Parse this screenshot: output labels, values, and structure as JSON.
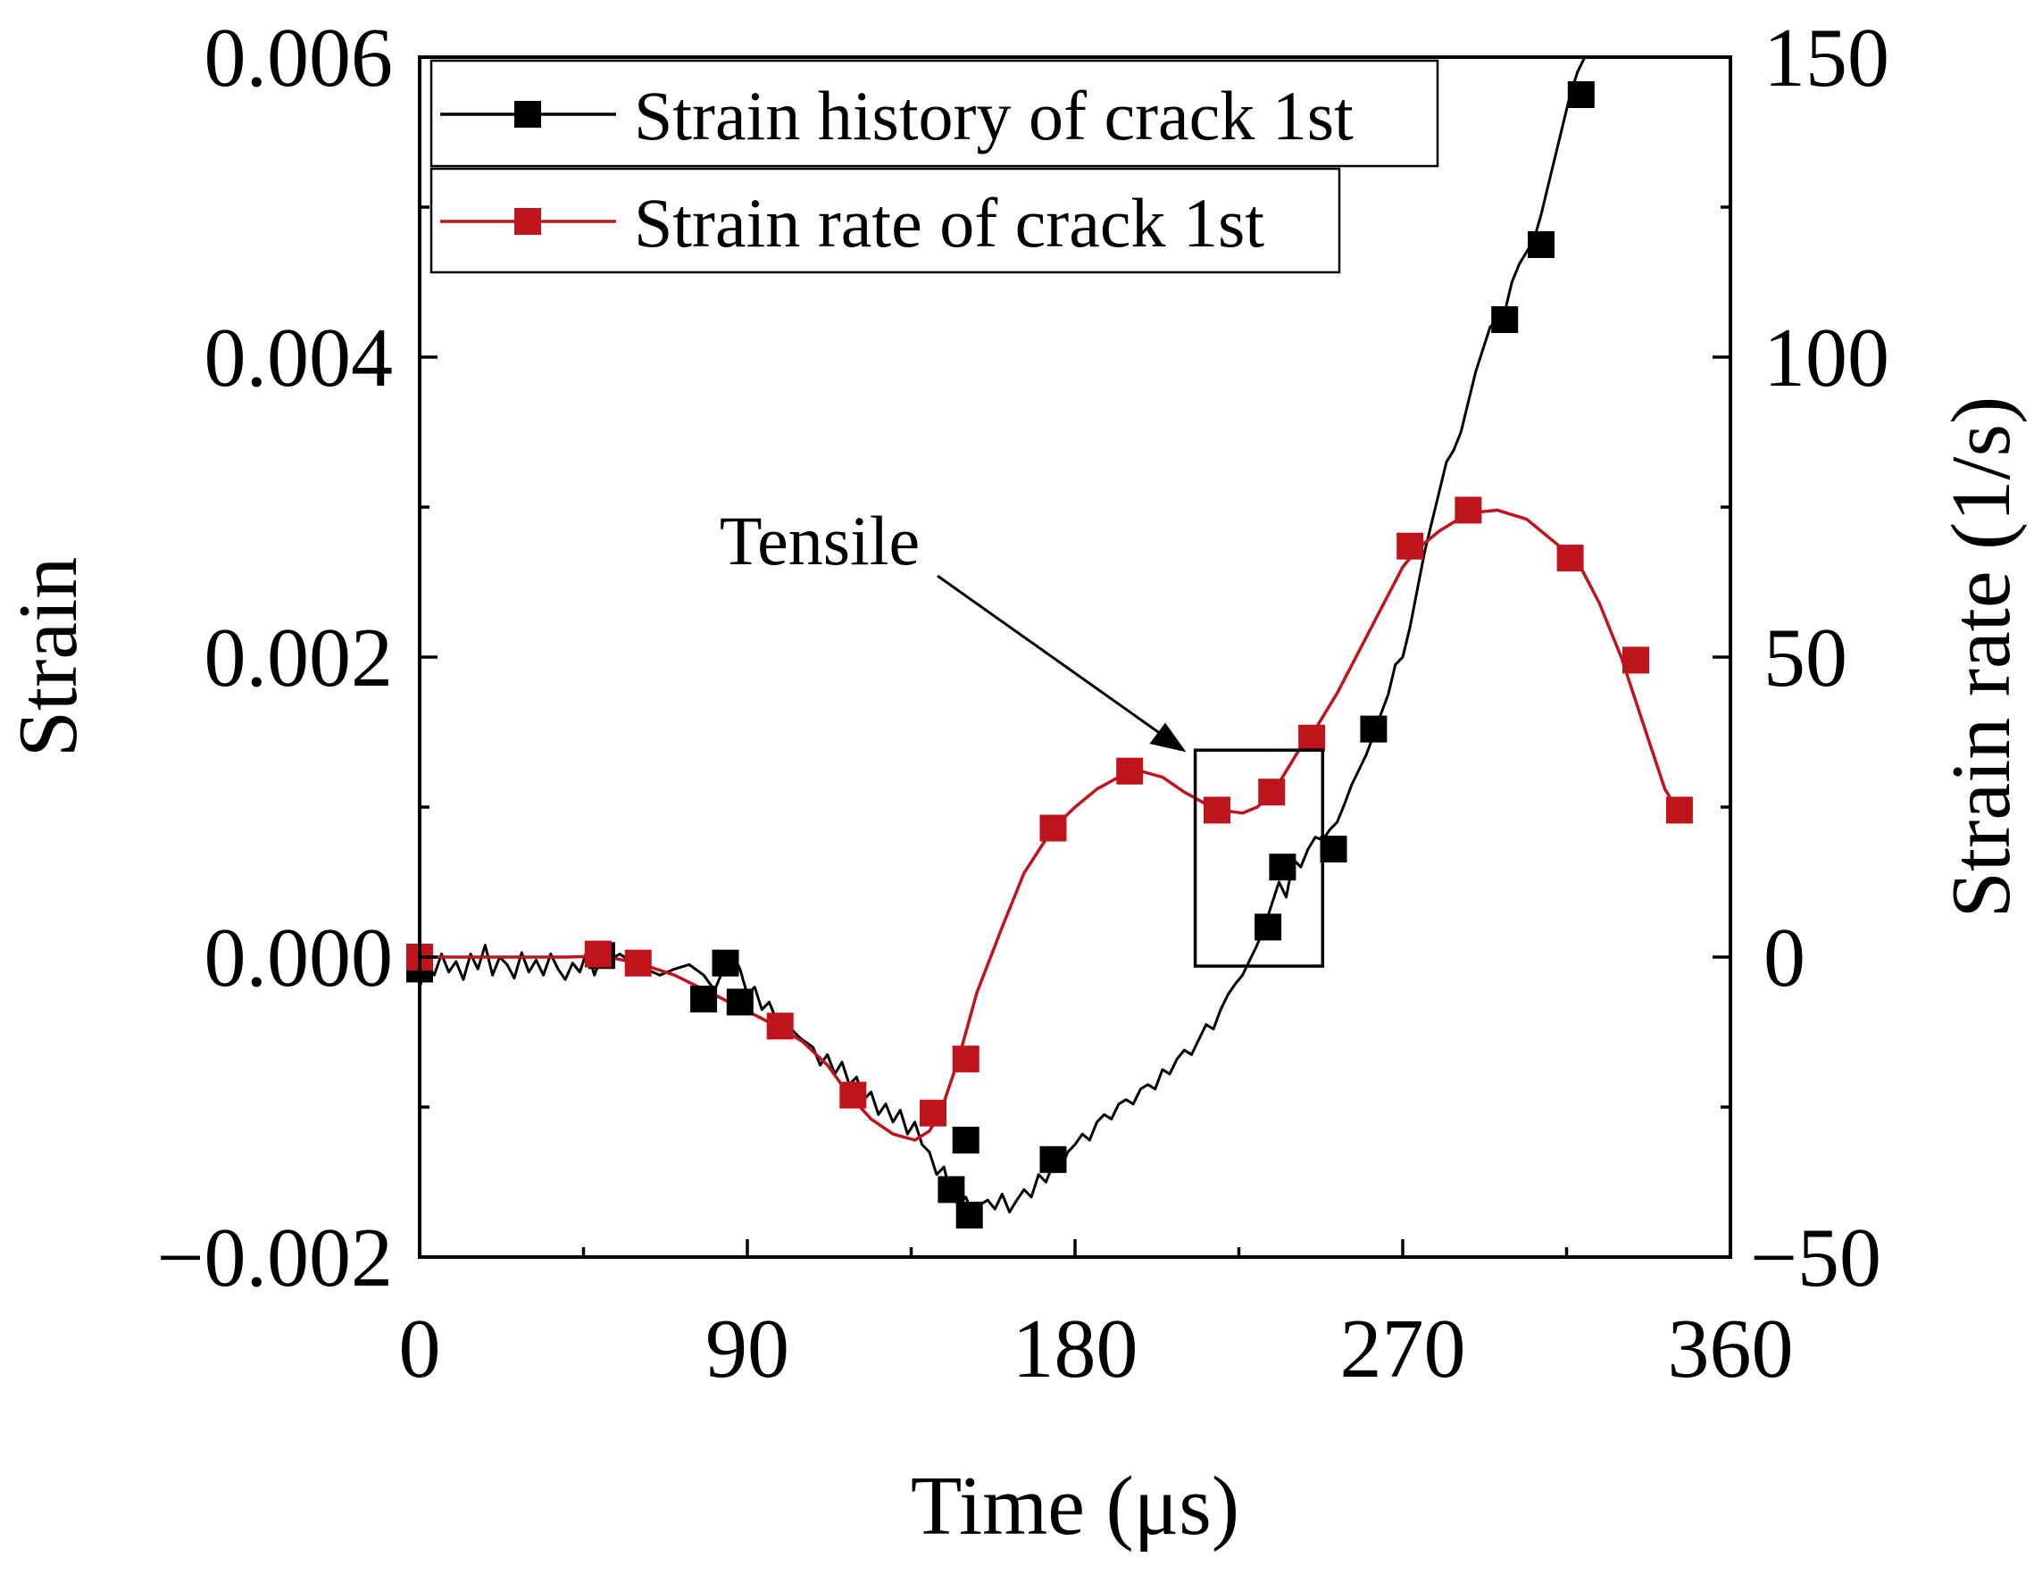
{
  "chart_data": {
    "type": "line",
    "xlabel": "Time (μs)",
    "ylabel": "Strain",
    "y2label": "Strain rate (1/s)",
    "xlim": [
      0,
      360
    ],
    "ylim": [
      -0.002,
      0.006
    ],
    "y2lim": [
      -50,
      150
    ],
    "xticks": [
      "0",
      "90",
      "180",
      "270",
      "360"
    ],
    "yticks": [
      "−0.002",
      "0.000",
      "0.002",
      "0.004",
      "0.006"
    ],
    "y2ticks": [
      "−50",
      "0",
      "50",
      "100",
      "150"
    ],
    "grid": false,
    "legend_position": "top-left",
    "annotation": {
      "text": "Tensile",
      "box_x": [
        213,
        248
      ],
      "box_y": [
        -6e-05,
        0.00138
      ]
    },
    "series": [
      {
        "name": "Strain history of crack 1st",
        "axis": "left",
        "color": "#000000",
        "line": [
          [
            0,
            -0.0002
          ],
          [
            2,
            -5e-05
          ],
          [
            4,
            -0.00012
          ],
          [
            6,
            2e-05
          ],
          [
            8,
            -0.0001
          ],
          [
            10,
            -3e-05
          ],
          [
            12,
            -0.00015
          ],
          [
            14,
            2e-05
          ],
          [
            16,
            -8e-05
          ],
          [
            18,
            8e-05
          ],
          [
            20,
            -0.00012
          ],
          [
            22,
            0.0
          ],
          [
            24,
            -5e-05
          ],
          [
            26,
            -0.00014
          ],
          [
            28,
            3e-05
          ],
          [
            30,
            -0.0001
          ],
          [
            32,
            -2e-05
          ],
          [
            34,
            -0.00012
          ],
          [
            36,
            2e-05
          ],
          [
            38,
            -8e-05
          ],
          [
            40,
            -0.00015
          ],
          [
            42,
            -4e-05
          ],
          [
            44,
            -0.0001
          ],
          [
            46,
            5e-05
          ],
          [
            48,
            -0.00012
          ],
          [
            50,
            1e-05
          ],
          [
            52,
            -2e-05
          ],
          [
            55,
            2e-05
          ],
          [
            58,
            -3e-05
          ],
          [
            62,
            -8e-05
          ],
          [
            66,
            -0.00012
          ],
          [
            70,
            -8e-05
          ],
          [
            74,
            -5e-05
          ],
          [
            78,
            -0.00012
          ],
          [
            81,
            -0.00022
          ],
          [
            84,
            -5e-05
          ],
          [
            86,
            2e-05
          ],
          [
            88,
            -8e-05
          ],
          [
            90,
            -0.00025
          ],
          [
            92,
            -0.0002
          ],
          [
            94,
            -0.00035
          ],
          [
            96,
            -0.0003
          ],
          [
            98,
            -0.00042
          ],
          [
            100,
            -0.00038
          ],
          [
            102,
            -0.00048
          ],
          [
            105,
            -0.00055
          ],
          [
            108,
            -0.0006
          ],
          [
            110,
            -0.00072
          ],
          [
            112,
            -0.00065
          ],
          [
            114,
            -0.00078
          ],
          [
            116,
            -0.0007
          ],
          [
            118,
            -0.00085
          ],
          [
            120,
            -0.0008
          ],
          [
            122,
            -0.00095
          ],
          [
            124,
            -0.0009
          ],
          [
            126,
            -0.00105
          ],
          [
            128,
            -0.00098
          ],
          [
            130,
            -0.0011
          ],
          [
            132,
            -0.00102
          ],
          [
            134,
            -0.00118
          ],
          [
            136,
            -0.0011
          ],
          [
            138,
            -0.00125
          ],
          [
            140,
            -0.0013
          ],
          [
            142,
            -0.00145
          ],
          [
            144,
            -0.0014
          ],
          [
            146,
            -0.0016
          ],
          [
            148,
            -0.00165
          ],
          [
            150,
            -0.0016
          ],
          [
            152,
            -0.00172
          ],
          [
            154,
            -0.00165
          ],
          [
            156,
            -0.00162
          ],
          [
            158,
            -0.00168
          ],
          [
            160,
            -0.00158
          ],
          [
            162,
            -0.0017
          ],
          [
            164,
            -0.00162
          ],
          [
            166,
            -0.00155
          ],
          [
            168,
            -0.0016
          ],
          [
            170,
            -0.00145
          ],
          [
            172,
            -0.0015
          ],
          [
            174,
            -0.00138
          ],
          [
            176,
            -0.00142
          ],
          [
            178,
            -0.0013
          ],
          [
            180,
            -0.00125
          ],
          [
            182,
            -0.00118
          ],
          [
            184,
            -0.00122
          ],
          [
            186,
            -0.0011
          ],
          [
            188,
            -0.00105
          ],
          [
            190,
            -0.00108
          ],
          [
            192,
            -0.00098
          ],
          [
            194,
            -0.00095
          ],
          [
            196,
            -0.00098
          ],
          [
            198,
            -0.00088
          ],
          [
            200,
            -0.00085
          ],
          [
            202,
            -0.00088
          ],
          [
            204,
            -0.00075
          ],
          [
            206,
            -0.00078
          ],
          [
            208,
            -0.00068
          ],
          [
            210,
            -0.00062
          ],
          [
            212,
            -0.00065
          ],
          [
            214,
            -0.00055
          ],
          [
            216,
            -0.00045
          ],
          [
            218,
            -0.00048
          ],
          [
            220,
            -0.00035
          ],
          [
            222,
            -0.00025
          ],
          [
            224,
            -0.00018
          ],
          [
            226,
            -0.00012
          ],
          [
            228,
            -2e-05
          ],
          [
            230,
            8e-05
          ],
          [
            232,
            0.0002
          ],
          [
            234,
            0.00035
          ],
          [
            236,
            0.0005
          ],
          [
            238,
            0.0004
          ],
          [
            240,
            0.00065
          ],
          [
            242,
            0.0006
          ],
          [
            244,
            0.00072
          ],
          [
            246,
            0.0008
          ],
          [
            248,
            0.00078
          ],
          [
            250,
            0.00085
          ],
          [
            252,
            0.0009
          ],
          [
            254,
            0.00102
          ],
          [
            256,
            0.00115
          ],
          [
            258,
            0.00125
          ],
          [
            260,
            0.00135
          ],
          [
            262,
            0.00148
          ],
          [
            264,
            0.00162
          ],
          [
            266,
            0.00175
          ],
          [
            268,
            0.00195
          ],
          [
            270,
            0.002
          ],
          [
            272,
            0.0022
          ],
          [
            274,
            0.00245
          ],
          [
            276,
            0.0027
          ],
          [
            278,
            0.0029
          ],
          [
            280,
            0.0031
          ],
          [
            282,
            0.0033
          ],
          [
            284,
            0.00338
          ],
          [
            286,
            0.0035
          ],
          [
            288,
            0.0037
          ],
          [
            290,
            0.0039
          ],
          [
            292,
            0.00405
          ],
          [
            294,
            0.0042
          ],
          [
            296,
            0.00425
          ],
          [
            298,
            0.0043
          ],
          [
            300,
            0.0045
          ],
          [
            302,
            0.00462
          ],
          [
            304,
            0.0047
          ],
          [
            306,
            0.00478
          ],
          [
            308,
            0.00495
          ],
          [
            310,
            0.00515
          ],
          [
            312,
            0.00535
          ],
          [
            314,
            0.00555
          ],
          [
            316,
            0.00575
          ],
          [
            318,
            0.0059
          ],
          [
            320,
            0.006
          ]
        ],
        "markers": [
          [
            0,
            -8e-05
          ],
          [
            50,
            1e-05
          ],
          [
            78,
            -0.00028
          ],
          [
            84,
            -4e-05
          ],
          [
            88,
            -0.0003
          ],
          [
            146,
            -0.00155
          ],
          [
            151,
            -0.00172
          ],
          [
            150,
            -0.00122
          ],
          [
            174,
            -0.00135
          ],
          [
            233,
            0.0002
          ],
          [
            237,
            0.0006
          ],
          [
            251,
            0.00072
          ],
          [
            262,
            0.00152
          ],
          [
            298,
            0.00425
          ],
          [
            308,
            0.00475
          ],
          [
            319,
            0.00575
          ]
        ]
      },
      {
        "name": "Strain rate of crack 1st",
        "axis": "right",
        "color": "#c0141c",
        "line": [
          [
            0,
            0
          ],
          [
            20,
            0
          ],
          [
            40,
            0
          ],
          [
            50,
            0.2
          ],
          [
            60,
            -1
          ],
          [
            70,
            -3
          ],
          [
            80,
            -6
          ],
          [
            90,
            -9
          ],
          [
            98,
            -11.5
          ],
          [
            105,
            -14
          ],
          [
            112,
            -18
          ],
          [
            118,
            -23
          ],
          [
            124,
            -27
          ],
          [
            130,
            -29.5
          ],
          [
            136,
            -30.5
          ],
          [
            140,
            -29
          ],
          [
            143,
            -26
          ],
          [
            148,
            -17
          ],
          [
            153,
            -6
          ],
          [
            160,
            5
          ],
          [
            166,
            14
          ],
          [
            174,
            21.5
          ],
          [
            180,
            25
          ],
          [
            186,
            28
          ],
          [
            192,
            30
          ],
          [
            198,
            31
          ],
          [
            204,
            30
          ],
          [
            210,
            27.5
          ],
          [
            216,
            25.5
          ],
          [
            220,
            24.5
          ],
          [
            226,
            24
          ],
          [
            230,
            25
          ],
          [
            234,
            27
          ],
          [
            238,
            31
          ],
          [
            242,
            35
          ],
          [
            246,
            38
          ],
          [
            252,
            44
          ],
          [
            258,
            51
          ],
          [
            264,
            58
          ],
          [
            270,
            65
          ],
          [
            274,
            68
          ],
          [
            280,
            71
          ],
          [
            288,
            74
          ],
          [
            296,
            74.5
          ],
          [
            304,
            73
          ],
          [
            312,
            69
          ],
          [
            318,
            66
          ],
          [
            324,
            59
          ],
          [
            330,
            50
          ],
          [
            336,
            39
          ],
          [
            342,
            28
          ],
          [
            346,
            24
          ]
        ],
        "markers": [
          [
            0,
            0
          ],
          [
            49,
            0.5
          ],
          [
            60,
            -1
          ],
          [
            99,
            -11.5
          ],
          [
            119,
            -23
          ],
          [
            141,
            -26
          ],
          [
            150,
            -17
          ],
          [
            174,
            21.5
          ],
          [
            195,
            31
          ],
          [
            219,
            24.5
          ],
          [
            234,
            27.5
          ],
          [
            245,
            36.5
          ],
          [
            272,
            68.5
          ],
          [
            288,
            74.5
          ],
          [
            316,
            66.5
          ],
          [
            334,
            49.5
          ],
          [
            346,
            24.5
          ]
        ]
      }
    ]
  }
}
